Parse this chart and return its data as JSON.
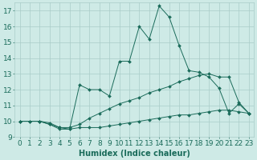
{
  "xlabel": "Humidex (Indice chaleur)",
  "background_color": "#ceeae6",
  "line_color": "#1a6b5a",
  "grid_color": "#aaccc8",
  "xlim": [
    -0.5,
    23.5
  ],
  "ylim": [
    9,
    17.5
  ],
  "yticks": [
    9,
    10,
    11,
    12,
    13,
    14,
    15,
    16,
    17
  ],
  "xticks": [
    0,
    1,
    2,
    3,
    4,
    5,
    6,
    7,
    8,
    9,
    10,
    11,
    12,
    13,
    14,
    15,
    16,
    17,
    18,
    19,
    20,
    21,
    22,
    23
  ],
  "series1_x": [
    0,
    1,
    2,
    3,
    4,
    5,
    6,
    7,
    8,
    9,
    10,
    11,
    12,
    13,
    14,
    15,
    16,
    17,
    18,
    19,
    20,
    21,
    22,
    23
  ],
  "series1_y": [
    10.0,
    10.0,
    10.0,
    9.8,
    9.5,
    9.5,
    9.6,
    9.6,
    9.6,
    9.7,
    9.8,
    9.9,
    10.0,
    10.1,
    10.2,
    10.3,
    10.4,
    10.4,
    10.5,
    10.6,
    10.7,
    10.7,
    10.6,
    10.5
  ],
  "series2_x": [
    0,
    1,
    2,
    3,
    4,
    5,
    6,
    7,
    8,
    9,
    10,
    11,
    12,
    13,
    14,
    15,
    16,
    17,
    18,
    19,
    20,
    21,
    22,
    23
  ],
  "series2_y": [
    10.0,
    10.0,
    10.0,
    9.9,
    9.6,
    9.6,
    9.8,
    10.2,
    10.5,
    10.8,
    11.1,
    11.3,
    11.5,
    11.8,
    12.0,
    12.2,
    12.5,
    12.7,
    12.9,
    13.0,
    12.8,
    12.8,
    11.2,
    10.5
  ],
  "series3_x": [
    0,
    2,
    3,
    4,
    5,
    6,
    7,
    8,
    9,
    10,
    11,
    12,
    13,
    14,
    15,
    16,
    17,
    18,
    19,
    20,
    21,
    22,
    23
  ],
  "series3_y": [
    10.0,
    10.0,
    9.8,
    9.6,
    9.5,
    12.3,
    12.0,
    12.0,
    11.6,
    13.8,
    13.8,
    16.0,
    15.2,
    17.3,
    16.6,
    14.8,
    13.2,
    13.1,
    12.8,
    12.1,
    10.5,
    11.1,
    10.5
  ],
  "font_size": 7,
  "tick_font_size": 6.5
}
